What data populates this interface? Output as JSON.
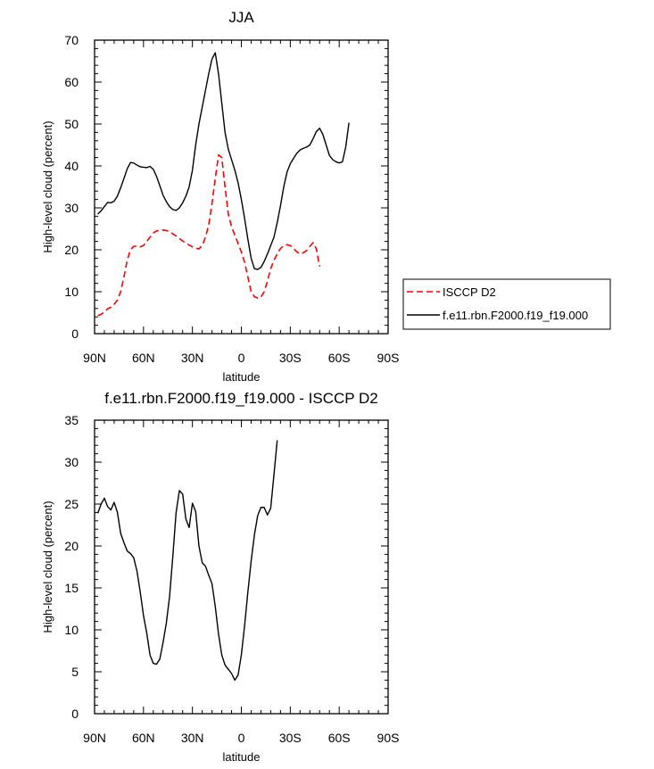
{
  "chart_data": [
    {
      "type": "line",
      "title": "JJA",
      "xlabel": "latitude",
      "ylabel": "High-level cloud (percent)",
      "xlim": [
        90,
        -90
      ],
      "ylim": [
        0,
        70
      ],
      "xticks": [
        90,
        60,
        30,
        0,
        -30,
        -60,
        -90
      ],
      "xtick_labels": [
        "90N",
        "60N",
        "30N",
        "0",
        "30S",
        "60S",
        "90S"
      ],
      "yticks": [
        0,
        10,
        20,
        30,
        40,
        50,
        60,
        70
      ],
      "legend": "right",
      "series": [
        {
          "name": "ISCCP D2",
          "color": "#ff0000",
          "dash": "dashed",
          "x": [
            88,
            86,
            84,
            82,
            80,
            78,
            76,
            74,
            72,
            70,
            68,
            66,
            64,
            62,
            60,
            58,
            56,
            54,
            52,
            50,
            48,
            46,
            44,
            42,
            40,
            38,
            36,
            34,
            32,
            30,
            28,
            26,
            24,
            22,
            20,
            18,
            16,
            14,
            12,
            10,
            8,
            6,
            4,
            2,
            0,
            -2,
            -4,
            -6,
            -8,
            -10,
            -12,
            -14,
            -16,
            -18,
            -20,
            -22,
            -24,
            -26,
            -28,
            -30,
            -32,
            -34,
            -36,
            -38,
            -40,
            -42,
            -44,
            -46,
            -48,
            -50,
            -52,
            -54,
            -56,
            -58,
            -60,
            -62,
            -64,
            -66
          ],
          "y": [
            4.3,
            4.6,
            5.2,
            5.9,
            6.3,
            7.0,
            8.0,
            10.0,
            13.5,
            17.5,
            20.0,
            20.8,
            20.9,
            20.7,
            21.0,
            22.0,
            23.0,
            24.0,
            24.5,
            24.6,
            24.7,
            24.6,
            24.3,
            23.8,
            23.3,
            22.7,
            22.1,
            21.6,
            21.1,
            20.7,
            20.4,
            20.2,
            21.0,
            23.0,
            26.0,
            31.0,
            37.0,
            42.6,
            42.0,
            35.0,
            28.5,
            25.5,
            23.5,
            21.5,
            19.5,
            17.0,
            13.5,
            10.0,
            8.8,
            8.5,
            8.7,
            10.0,
            12.5,
            15.5,
            17.5,
            19.0,
            20.3,
            21.0,
            21.2,
            21.0,
            20.3,
            19.5,
            19.0,
            19.3,
            19.8,
            20.8,
            21.7,
            20.2,
            16.0,
            null,
            null,
            null,
            null,
            null,
            null,
            null,
            null,
            null
          ]
        },
        {
          "name": "f.e11.rbn.F2000.f19_f19.000",
          "color": "#000000",
          "dash": "solid",
          "x": [
            88,
            86,
            84,
            82,
            80,
            78,
            76,
            74,
            72,
            70,
            68,
            66,
            64,
            62,
            60,
            58,
            56,
            54,
            52,
            50,
            48,
            46,
            44,
            42,
            40,
            38,
            36,
            34,
            32,
            30,
            28,
            26,
            24,
            22,
            20,
            18,
            16,
            14,
            12,
            10,
            8,
            6,
            4,
            2,
            0,
            -2,
            -4,
            -6,
            -8,
            -10,
            -12,
            -14,
            -16,
            -18,
            -20,
            -22,
            -24,
            -26,
            -28,
            -30,
            -32,
            -34,
            -36,
            -38,
            -40,
            -42,
            -44,
            -46,
            -48,
            -50,
            -52,
            -54,
            -56,
            -58,
            -60,
            -62,
            -64,
            -66,
            -68,
            -70,
            -72,
            -74,
            -76,
            -78,
            -80,
            -82,
            -84,
            -86,
            -88
          ],
          "y": [
            28.5,
            29.3,
            30.3,
            31.3,
            31.2,
            31.6,
            32.8,
            34.8,
            37.0,
            39.3,
            40.8,
            40.7,
            40.2,
            39.8,
            39.7,
            39.6,
            39.9,
            39.2,
            37.5,
            35.3,
            33.0,
            31.5,
            30.3,
            29.6,
            29.4,
            30.0,
            31.2,
            32.8,
            35.0,
            39.0,
            45.0,
            50.0,
            54.0,
            58.0,
            62.0,
            65.5,
            67.0,
            62.0,
            55.0,
            48.0,
            44.0,
            41.5,
            39.0,
            36.0,
            32.0,
            27.5,
            22.5,
            18.0,
            15.5,
            15.3,
            15.8,
            17.2,
            19.0,
            21.0,
            23.0,
            26.5,
            30.5,
            35.0,
            38.5,
            40.5,
            41.8,
            43.0,
            43.8,
            44.2,
            44.5,
            45.0,
            46.5,
            48.2,
            49.0,
            47.5,
            45.0,
            42.5,
            41.5,
            41.0,
            40.7,
            41.0,
            44.5,
            50.3,
            null,
            null,
            null,
            null,
            null,
            null,
            null,
            null,
            null,
            null,
            null
          ]
        }
      ]
    },
    {
      "type": "line",
      "title": "f.e11.rbn.F2000.f19_f19.000 - ISCCP D2",
      "xlabel": "latitude",
      "ylabel": "High-level cloud (percent)",
      "xlim": [
        90,
        -90
      ],
      "ylim": [
        0,
        35
      ],
      "xticks": [
        90,
        60,
        30,
        0,
        -30,
        -60,
        -90
      ],
      "xtick_labels": [
        "90N",
        "60N",
        "30N",
        "0",
        "30S",
        "60S",
        "90S"
      ],
      "yticks": [
        0,
        5,
        10,
        15,
        20,
        25,
        30,
        35
      ],
      "series": [
        {
          "color": "#000000",
          "dash": "solid",
          "x": [
            88,
            86,
            84,
            82,
            80,
            78,
            76,
            74,
            72,
            70,
            68,
            66,
            64,
            62,
            60,
            58,
            56,
            54,
            52,
            50,
            48,
            46,
            44,
            42,
            40,
            38,
            36,
            34,
            32,
            30,
            28,
            26,
            24,
            22,
            20,
            18,
            16,
            14,
            12,
            10,
            8,
            6,
            4,
            2,
            0,
            -2,
            -4,
            -6,
            -8,
            -10,
            -12,
            -14,
            -16,
            -18,
            -20,
            -22,
            -24,
            -26,
            -28,
            -30,
            -32,
            -34,
            -36,
            -38,
            -40,
            -42,
            -44,
            -46,
            -48,
            -50,
            -52,
            -54,
            -56,
            -58,
            -60,
            -62,
            -64,
            -66
          ],
          "y": [
            23.9,
            25.0,
            25.7,
            24.7,
            24.3,
            25.2,
            24.0,
            21.5,
            20.4,
            19.4,
            19.1,
            18.6,
            17.0,
            14.5,
            11.7,
            9.6,
            7.0,
            6.0,
            5.9,
            6.5,
            8.5,
            10.8,
            14.0,
            18.8,
            24.0,
            26.6,
            26.2,
            23.2,
            22.2,
            25.1,
            24.1,
            20.0,
            18.0,
            17.6,
            16.5,
            15.5,
            12.8,
            9.5,
            7.0,
            5.8,
            5.3,
            4.8,
            4.0,
            4.6,
            7.0,
            10.5,
            14.5,
            18.2,
            21.3,
            23.6,
            24.6,
            24.6,
            23.7,
            24.5,
            28.5,
            32.6,
            null,
            null,
            null,
            null,
            null,
            null,
            null,
            null,
            null,
            null,
            null,
            null,
            null,
            null,
            null,
            null,
            null,
            null,
            null,
            null,
            null,
            null
          ]
        }
      ]
    }
  ]
}
